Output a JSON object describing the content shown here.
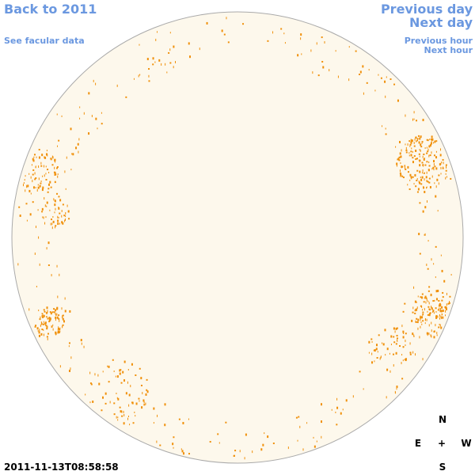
{
  "navigation": {
    "back": "Back to 2011",
    "facular_data": "See facular data",
    "previous_day": "Previous day",
    "next_day": "Next day",
    "previous_hour": "Previous hour",
    "next_hour": "Next hour"
  },
  "timestamp": "2011-11-13T08:58:58",
  "compass": {
    "north": "N",
    "east": "E",
    "center": "+",
    "west": "W",
    "south": "S"
  }
}
